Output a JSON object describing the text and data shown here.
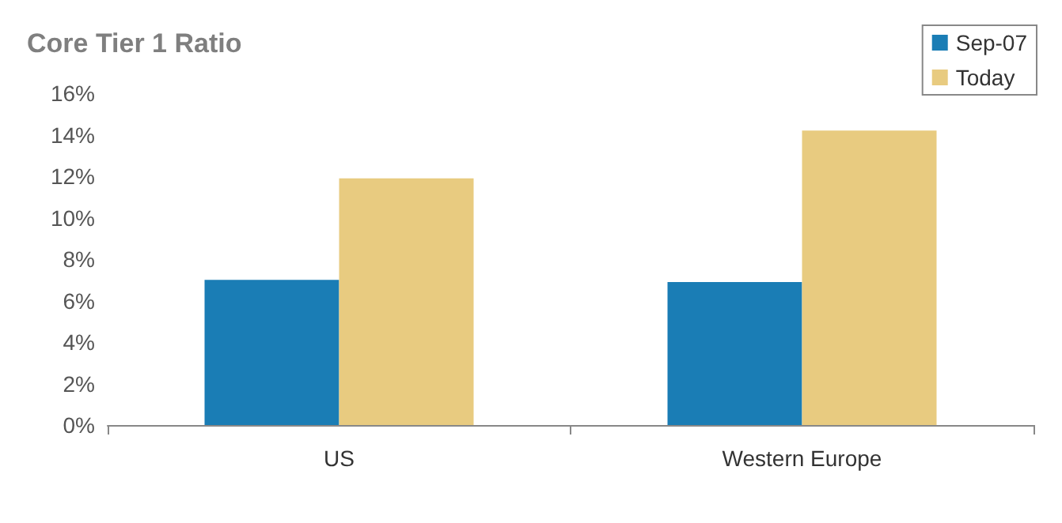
{
  "chart_data": {
    "type": "bar",
    "title": "Core Tier 1 Ratio",
    "categories": [
      "US",
      "Western Europe"
    ],
    "series": [
      {
        "name": "Sep-07",
        "color": "#1a7db5",
        "values": [
          7.0,
          6.9
        ]
      },
      {
        "name": "Today",
        "color": "#e8cb80",
        "values": [
          11.9,
          14.2
        ]
      }
    ],
    "ylim": [
      0,
      16
    ],
    "yticks": [
      {
        "value": 0,
        "label": "0%"
      },
      {
        "value": 2,
        "label": "2%"
      },
      {
        "value": 4,
        "label": "4%"
      },
      {
        "value": 6,
        "label": "6%"
      },
      {
        "value": 8,
        "label": "8%"
      },
      {
        "value": 10,
        "label": "10%"
      },
      {
        "value": 12,
        "label": "12%"
      },
      {
        "value": 14,
        "label": "14%"
      },
      {
        "value": 16,
        "label": "16%"
      }
    ],
    "grid": false,
    "legend": "top right"
  }
}
